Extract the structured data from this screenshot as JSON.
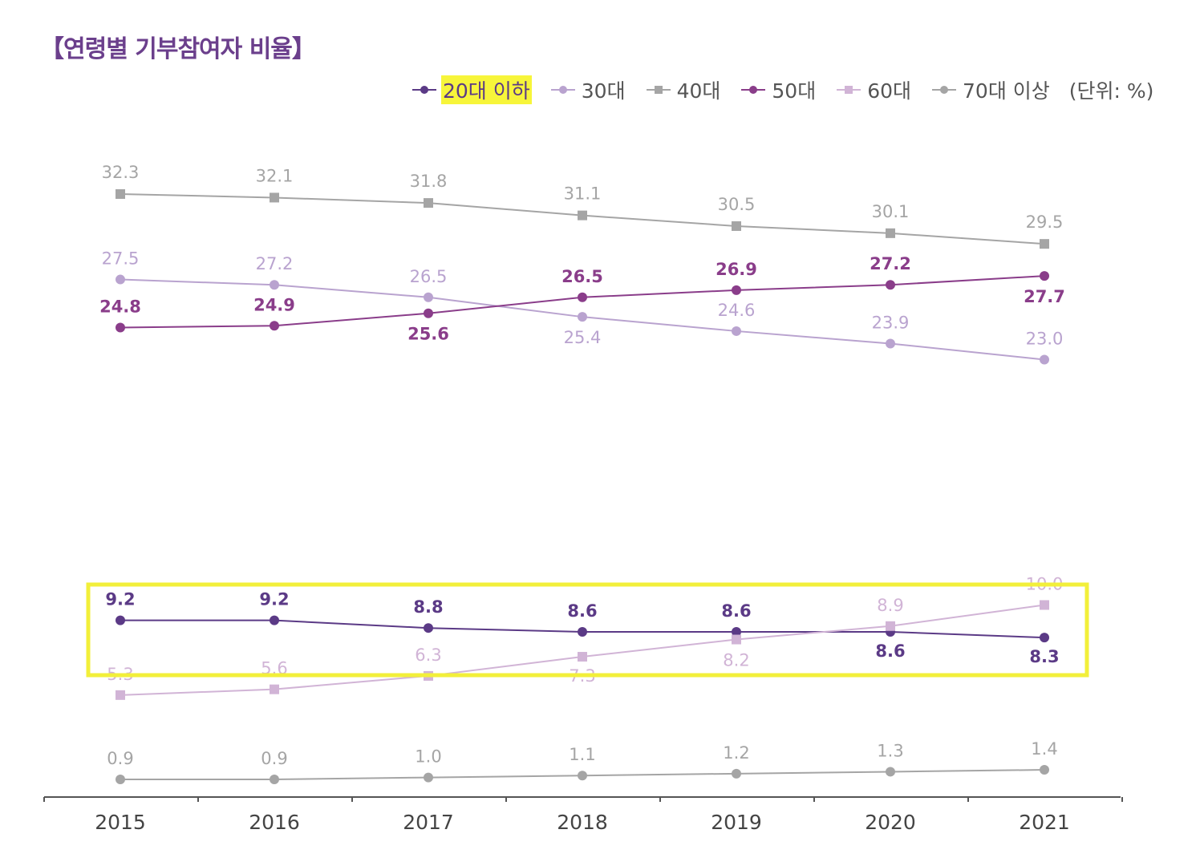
{
  "title": "【연령별 기부참여자 비율】",
  "unit_label": "(단위: %)",
  "colors": {
    "age_20_under": "#5b3a86",
    "age_30s": "#b9a3cf",
    "age_40s": "#a5a5a5",
    "age_50s": "#8a3d8a",
    "age_60s": "#d1b4d6",
    "age_70_over": "#a5a5a5",
    "highlight_box": "#f2ef3a",
    "legend_highlight": "#f7f53a"
  },
  "chart_data": {
    "type": "line",
    "title": "【연령별 기부참여자 비율】",
    "xlabel": "",
    "ylabel": "",
    "unit": "(단위: %)",
    "x": [
      "2015",
      "2016",
      "2017",
      "2018",
      "2019",
      "2020",
      "2021"
    ],
    "ylim": [
      0,
      33
    ],
    "grid": false,
    "legend_position": "top-right",
    "series": [
      {
        "name": "20대 이하",
        "marker": "circle",
        "values": [
          9.2,
          9.2,
          8.8,
          8.6,
          8.6,
          8.6,
          8.3
        ]
      },
      {
        "name": "30대",
        "marker": "circle",
        "values": [
          27.5,
          27.2,
          26.5,
          25.4,
          24.6,
          23.9,
          23.0
        ]
      },
      {
        "name": "40대",
        "marker": "square",
        "values": [
          32.3,
          32.1,
          31.8,
          31.1,
          30.5,
          30.1,
          29.5
        ]
      },
      {
        "name": "50대",
        "marker": "circle",
        "values": [
          24.8,
          24.9,
          25.6,
          26.5,
          26.9,
          27.2,
          27.7
        ]
      },
      {
        "name": "60대",
        "marker": "square",
        "values": [
          5.3,
          5.6,
          6.3,
          7.3,
          8.2,
          8.9,
          10.0
        ]
      },
      {
        "name": "70대 이상",
        "marker": "circle",
        "values": [
          0.9,
          0.9,
          1.0,
          1.1,
          1.2,
          1.3,
          1.4
        ]
      }
    ]
  }
}
